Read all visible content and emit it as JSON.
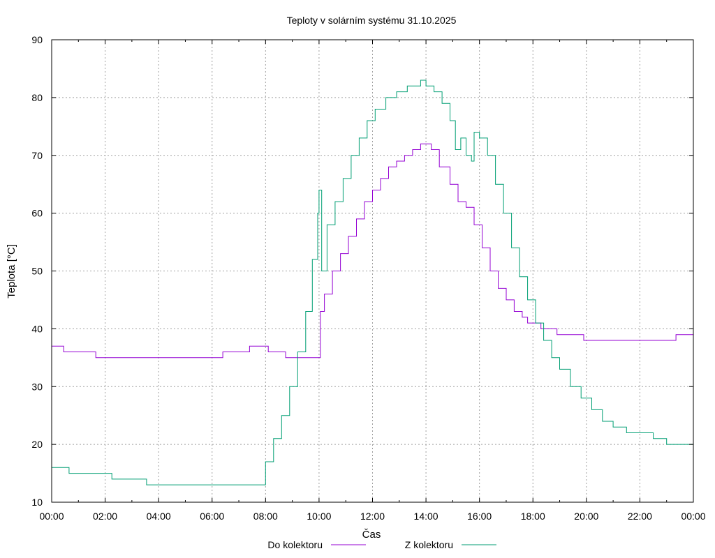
{
  "chart_data": {
    "type": "line",
    "title": "Teploty v solárním systému 31.10.2025",
    "xlabel": "Čas",
    "ylabel": "Teplota [°C]",
    "ylim": [
      10,
      90
    ],
    "yticks": [
      10,
      20,
      30,
      40,
      50,
      60,
      70,
      80,
      90
    ],
    "xlim": [
      0,
      24
    ],
    "xticks": [
      0,
      2,
      4,
      6,
      8,
      10,
      12,
      14,
      16,
      18,
      20,
      22,
      24
    ],
    "xtick_labels": [
      "00:00",
      "02:00",
      "04:00",
      "06:00",
      "08:00",
      "10:00",
      "12:00",
      "14:00",
      "16:00",
      "18:00",
      "20:00",
      "22:00",
      "00:00"
    ],
    "grid": true,
    "legend_position": "bottom-center",
    "series": [
      {
        "name": "Do kolektoru",
        "color": "#9400d3",
        "x": [
          0,
          0.4,
          0.45,
          1.6,
          1.65,
          6.35,
          6.4,
          7.35,
          7.4,
          8.05,
          8.1,
          8.7,
          8.75,
          10.0,
          10.05,
          10.2,
          10.5,
          10.8,
          11.1,
          11.4,
          11.7,
          12.0,
          12.3,
          12.6,
          12.9,
          13.2,
          13.5,
          13.8,
          14.0,
          14.2,
          14.5,
          14.9,
          15.2,
          15.5,
          15.8,
          16.1,
          16.4,
          16.7,
          17.0,
          17.3,
          17.6,
          17.8,
          18.0,
          18.3,
          18.6,
          18.9,
          19.3,
          19.9,
          20.0,
          23.3,
          23.35,
          24.0
        ],
        "values": [
          37,
          37,
          36,
          36,
          35,
          35,
          36,
          36,
          37,
          37,
          36,
          36,
          35,
          35,
          43,
          46,
          50,
          53,
          56,
          59,
          62,
          64,
          66,
          68,
          69,
          70,
          71,
          72,
          72,
          71,
          68,
          65,
          62,
          61,
          58,
          54,
          50,
          47,
          45,
          43,
          42,
          41,
          41,
          40,
          40,
          39,
          39,
          38,
          38,
          38,
          39,
          39
        ]
      },
      {
        "name": "Z kolektoru",
        "color": "#009e73",
        "x": [
          0,
          0.6,
          0.65,
          1.2,
          2.2,
          2.25,
          3.5,
          3.55,
          7.5,
          7.75,
          8.0,
          8.3,
          8.6,
          8.9,
          9.2,
          9.5,
          9.75,
          9.95,
          10.0,
          10.1,
          10.3,
          10.6,
          10.9,
          11.2,
          11.5,
          11.8,
          12.1,
          12.5,
          12.9,
          13.3,
          13.6,
          13.8,
          14.0,
          14.3,
          14.6,
          14.9,
          15.1,
          15.3,
          15.5,
          15.7,
          15.8,
          16.0,
          16.3,
          16.6,
          16.9,
          17.2,
          17.5,
          17.8,
          18.1,
          18.4,
          18.7,
          19.0,
          19.4,
          19.8,
          20.2,
          20.6,
          21.0,
          21.5,
          22.0,
          22.5,
          23.0,
          23.5,
          24.0
        ],
        "values": [
          16,
          16,
          15,
          15,
          15,
          14,
          14,
          13,
          13,
          13,
          17,
          21,
          25,
          30,
          36,
          43,
          52,
          60,
          64,
          50,
          58,
          62,
          66,
          70,
          73,
          76,
          78,
          80,
          81,
          82,
          82,
          83,
          82,
          81,
          79,
          76,
          71,
          73,
          70,
          69,
          74,
          73,
          70,
          65,
          60,
          54,
          49,
          45,
          41,
          38,
          35,
          33,
          30,
          28,
          26,
          24,
          23,
          22,
          22,
          21,
          20,
          20,
          19
        ]
      }
    ]
  }
}
